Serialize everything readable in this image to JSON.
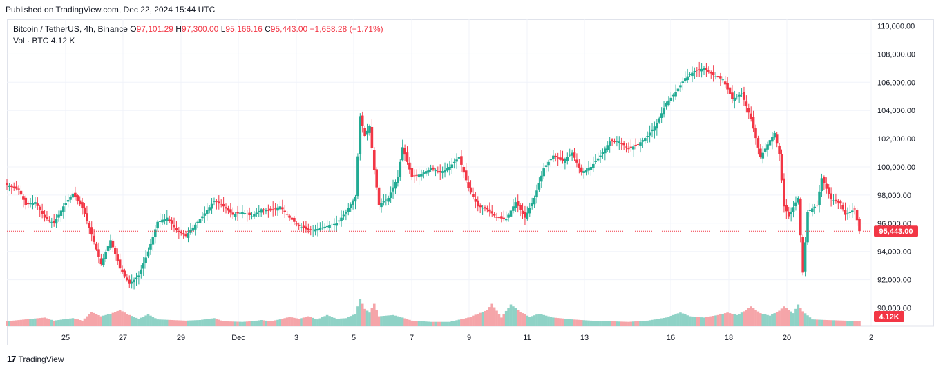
{
  "header": {
    "published": "Published on TradingView.com, Dec 22, 2024 15:44 UTC"
  },
  "legend": {
    "symbol": "Bitcoin / TetherUS, 4h, Binance",
    "open_label": "O",
    "open": "97,101.29",
    "high_label": "H",
    "high": "97,300.00",
    "low_label": "L",
    "low": "95,166.16",
    "close_label": "C",
    "close": "95,443.00",
    "change": "−1,658.28 (−1.71%)",
    "vol_label": "Vol · BTC",
    "vol_value": "4.12 K"
  },
  "footer": {
    "logo_text": "TradingView",
    "logo_mark": "17"
  },
  "colors": {
    "up": "#22ab94",
    "down": "#f23645",
    "up_vol": "#8fd2c6",
    "down_vol": "#f5a5a9",
    "grid": "#f0f3fa"
  },
  "chart_data": {
    "type": "candlestick",
    "y_ticks": [
      "110,000.00",
      "108,000.00",
      "106,000.00",
      "104,000.00",
      "102,000.00",
      "100,000.00",
      "98,000.00",
      "96,000.00",
      "94,000.00",
      "92,000.00",
      "90,000.00"
    ],
    "x_ticks": [
      "25",
      "27",
      "29",
      "Dec",
      "3",
      "5",
      "7",
      "9",
      "11",
      "13",
      "16",
      "18",
      "20",
      "2"
    ],
    "price_label": "95,443.00",
    "vol_label": "4.12K",
    "ylim": [
      88800,
      111000
    ],
    "anchors": [
      [
        0,
        98700
      ],
      [
        5,
        98400
      ],
      [
        8,
        97300
      ],
      [
        12,
        97500
      ],
      [
        16,
        96400
      ],
      [
        20,
        96000
      ],
      [
        24,
        97200
      ],
      [
        28,
        98100
      ],
      [
        32,
        97100
      ],
      [
        36,
        95200
      ],
      [
        40,
        93100
      ],
      [
        44,
        94800
      ],
      [
        48,
        92800
      ],
      [
        52,
        91700
      ],
      [
        56,
        92300
      ],
      [
        60,
        94000
      ],
      [
        64,
        96100
      ],
      [
        68,
        96400
      ],
      [
        72,
        95500
      ],
      [
        76,
        95100
      ],
      [
        80,
        95900
      ],
      [
        84,
        96700
      ],
      [
        88,
        97600
      ],
      [
        92,
        97200
      ],
      [
        96,
        96600
      ],
      [
        100,
        96800
      ],
      [
        104,
        96500
      ],
      [
        108,
        97000
      ],
      [
        112,
        96900
      ],
      [
        116,
        97200
      ],
      [
        120,
        96400
      ],
      [
        124,
        95800
      ],
      [
        128,
        95500
      ],
      [
        132,
        95600
      ],
      [
        136,
        95800
      ],
      [
        140,
        96000
      ],
      [
        144,
        96800
      ],
      [
        148,
        97900
      ],
      [
        150,
        103600
      ],
      [
        152,
        102200
      ],
      [
        154,
        102900
      ],
      [
        156,
        99800
      ],
      [
        158,
        97300
      ],
      [
        162,
        97800
      ],
      [
        166,
        99300
      ],
      [
        168,
        101400
      ],
      [
        172,
        99300
      ],
      [
        176,
        99500
      ],
      [
        180,
        99900
      ],
      [
        184,
        99600
      ],
      [
        188,
        100000
      ],
      [
        192,
        100700
      ],
      [
        196,
        98500
      ],
      [
        200,
        97200
      ],
      [
        204,
        97000
      ],
      [
        208,
        96400
      ],
      [
        212,
        96300
      ],
      [
        216,
        97500
      ],
      [
        220,
        96400
      ],
      [
        224,
        97800
      ],
      [
        228,
        99900
      ],
      [
        232,
        100800
      ],
      [
        236,
        100400
      ],
      [
        240,
        101000
      ],
      [
        244,
        99600
      ],
      [
        248,
        100000
      ],
      [
        252,
        100800
      ],
      [
        256,
        101800
      ],
      [
        260,
        101800
      ],
      [
        264,
        101300
      ],
      [
        268,
        101600
      ],
      [
        272,
        102200
      ],
      [
        276,
        103100
      ],
      [
        280,
        104500
      ],
      [
        284,
        105300
      ],
      [
        288,
        106300
      ],
      [
        292,
        106800
      ],
      [
        296,
        107000
      ],
      [
        300,
        106500
      ],
      [
        304,
        106200
      ],
      [
        308,
        104800
      ],
      [
        312,
        105200
      ],
      [
        316,
        103400
      ],
      [
        320,
        100700
      ],
      [
        324,
        101900
      ],
      [
        326,
        102400
      ],
      [
        328,
        100900
      ],
      [
        330,
        97200
      ],
      [
        332,
        96500
      ],
      [
        336,
        97800
      ],
      [
        338,
        92500
      ],
      [
        340,
        96800
      ],
      [
        344,
        97300
      ],
      [
        346,
        99200
      ],
      [
        350,
        97700
      ],
      [
        354,
        97400
      ],
      [
        356,
        96600
      ],
      [
        360,
        97000
      ],
      [
        362,
        95443
      ]
    ],
    "volume_anchors": [
      [
        0,
        0.8
      ],
      [
        8,
        1.1
      ],
      [
        16,
        1.4
      ],
      [
        20,
        0.9
      ],
      [
        28,
        1.3
      ],
      [
        32,
        0.9
      ],
      [
        36,
        2.3
      ],
      [
        40,
        1.6
      ],
      [
        44,
        2.0
      ],
      [
        48,
        2.6
      ],
      [
        52,
        1.8
      ],
      [
        56,
        1.2
      ],
      [
        60,
        1.9
      ],
      [
        64,
        1.1
      ],
      [
        70,
        1.0
      ],
      [
        76,
        0.9
      ],
      [
        82,
        1.0
      ],
      [
        88,
        1.3
      ],
      [
        92,
        0.8
      ],
      [
        100,
        0.7
      ],
      [
        104,
        0.8
      ],
      [
        108,
        1.0
      ],
      [
        112,
        0.8
      ],
      [
        116,
        1.1
      ],
      [
        120,
        1.5
      ],
      [
        124,
        1.2
      ],
      [
        128,
        1.6
      ],
      [
        132,
        1.1
      ],
      [
        136,
        1.8
      ],
      [
        140,
        1.2
      ],
      [
        144,
        1.3
      ],
      [
        148,
        2.0
      ],
      [
        150,
        4.4
      ],
      [
        152,
        2.8
      ],
      [
        154,
        2.2
      ],
      [
        156,
        3.6
      ],
      [
        158,
        1.6
      ],
      [
        164,
        1.8
      ],
      [
        168,
        1.4
      ],
      [
        172,
        0.9
      ],
      [
        180,
        0.7
      ],
      [
        188,
        0.7
      ],
      [
        196,
        1.4
      ],
      [
        200,
        2.0
      ],
      [
        204,
        2.6
      ],
      [
        206,
        3.6
      ],
      [
        210,
        1.4
      ],
      [
        214,
        3.5
      ],
      [
        218,
        2.3
      ],
      [
        222,
        1.5
      ],
      [
        226,
        2.0
      ],
      [
        232,
        1.4
      ],
      [
        240,
        1.1
      ],
      [
        248,
        0.9
      ],
      [
        256,
        0.8
      ],
      [
        264,
        0.7
      ],
      [
        272,
        0.9
      ],
      [
        280,
        1.4
      ],
      [
        286,
        2.2
      ],
      [
        290,
        1.6
      ],
      [
        296,
        1.4
      ],
      [
        302,
        1.8
      ],
      [
        306,
        2.2
      ],
      [
        310,
        1.8
      ],
      [
        314,
        2.6
      ],
      [
        316,
        3.2
      ],
      [
        320,
        2.1
      ],
      [
        324,
        1.7
      ],
      [
        328,
        2.5
      ],
      [
        330,
        3.2
      ],
      [
        334,
        2.1
      ],
      [
        336,
        3.5
      ],
      [
        338,
        2.4
      ],
      [
        342,
        1.1
      ],
      [
        348,
        1.0
      ],
      [
        356,
        0.9
      ],
      [
        362,
        0.8
      ]
    ]
  }
}
